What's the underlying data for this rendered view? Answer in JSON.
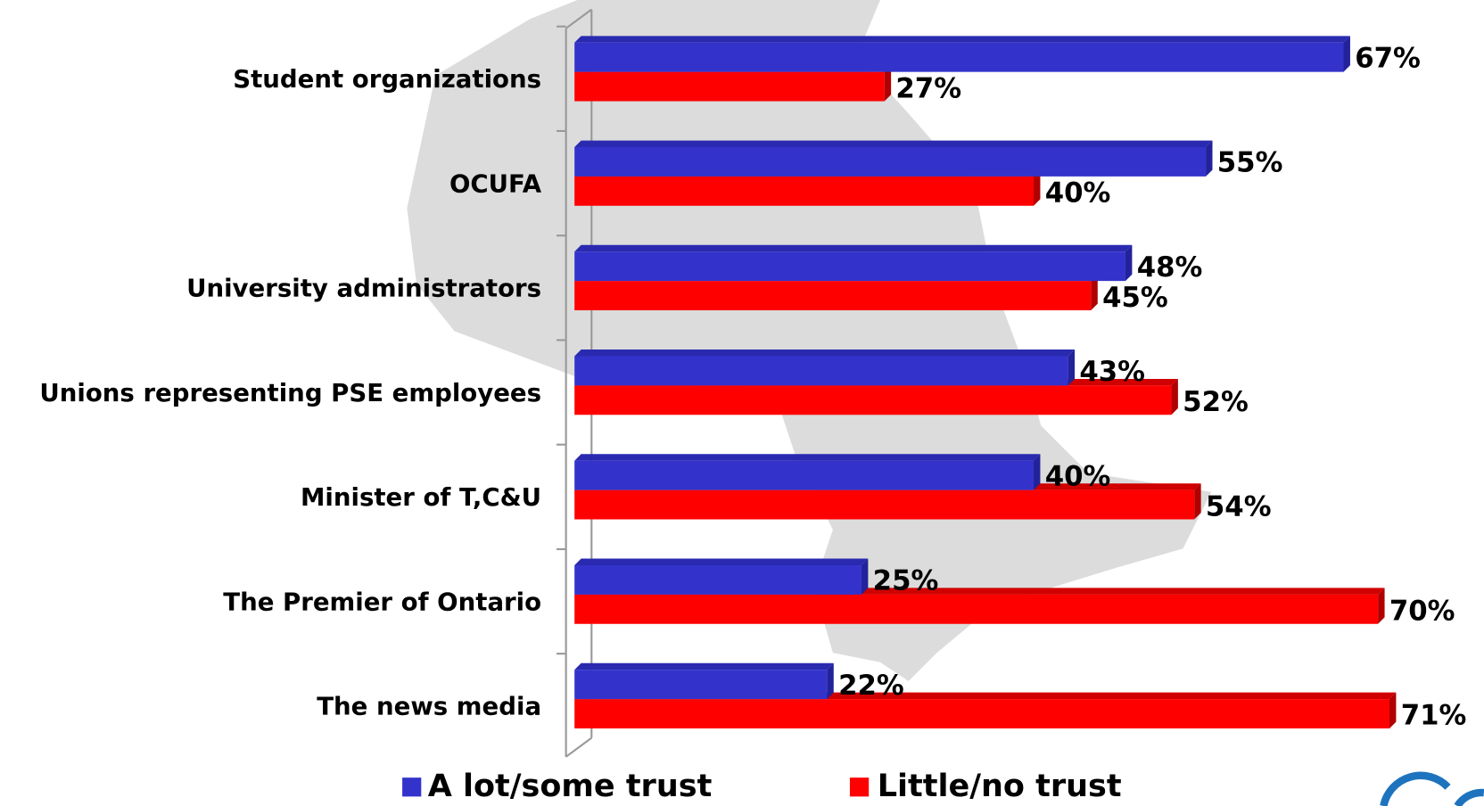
{
  "chart_data": {
    "type": "bar",
    "orientation": "horizontal",
    "categories": [
      "Student organizations",
      "OCUFA",
      "University administrators",
      "Unions representing PSE employees",
      "Minister of T,C&U",
      "The Premier of Ontario",
      "The news media"
    ],
    "series": [
      {
        "name": "A lot/some trust",
        "color": "#3333cc",
        "values": [
          67,
          55,
          48,
          43,
          40,
          25,
          22
        ],
        "value_labels": [
          "67%",
          "55%",
          "48%",
          "43%",
          "40%",
          "25%",
          "22%"
        ]
      },
      {
        "name": "Little/no trust",
        "color": "#ff0000",
        "values": [
          27,
          40,
          45,
          52,
          54,
          70,
          71
        ],
        "value_labels": [
          "27%",
          "40%",
          "45%",
          "52%",
          "54%",
          "70%",
          "71%"
        ]
      }
    ],
    "xlim": [
      0,
      100
    ]
  }
}
